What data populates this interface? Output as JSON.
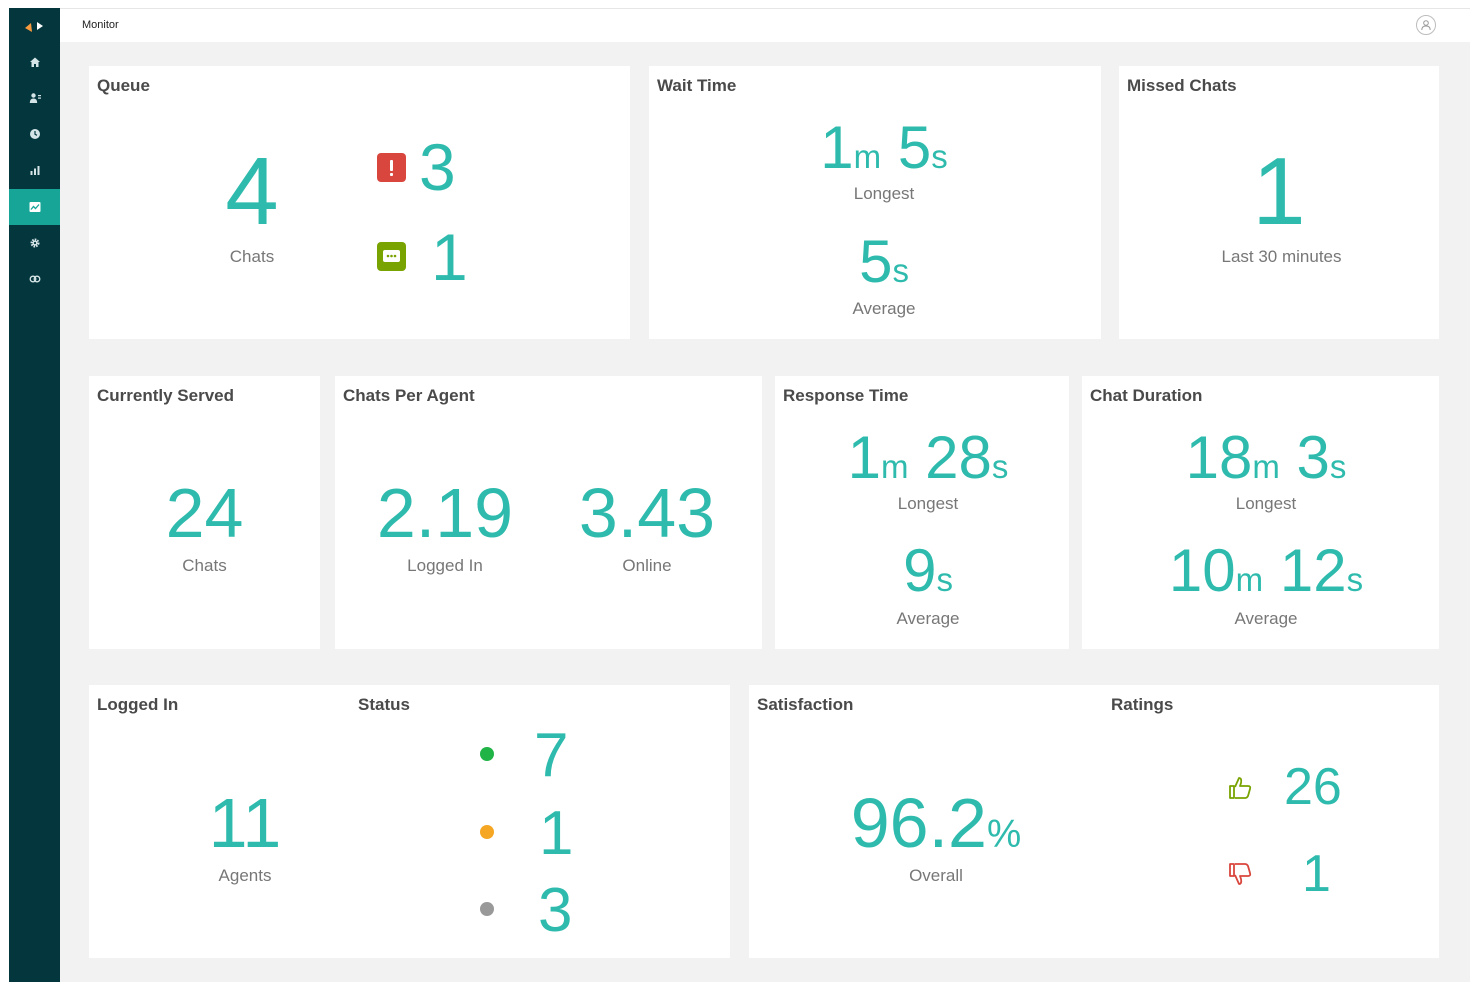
{
  "app": {
    "title": "Monitor"
  },
  "sidebar": {
    "items": [
      {
        "icon": "home-icon"
      },
      {
        "icon": "users-icon"
      },
      {
        "icon": "clock-icon"
      },
      {
        "icon": "bar-chart-icon"
      },
      {
        "icon": "monitor-chart-icon",
        "active": true
      },
      {
        "icon": "gear-icon"
      },
      {
        "icon": "link-icon"
      }
    ]
  },
  "colors": {
    "accent": "#2ebbad",
    "sidebar": "#03363d",
    "active_nav": "#17a597",
    "alert": "#d9463d",
    "chat_badge": "#78a300",
    "status_online": "#20b346",
    "status_away": "#f5a623",
    "status_offline": "#999999",
    "thumbs_up": "#78a300",
    "thumbs_down": "#d9463d"
  },
  "queue": {
    "title": "Queue",
    "chats_value": "4",
    "chats_label": "Chats",
    "alert_value": "3",
    "message_value": "1"
  },
  "wait_time": {
    "title": "Wait Time",
    "longest_m": "1",
    "longest_s": "5",
    "longest_label": "Longest",
    "average_s": "5",
    "average_label": "Average"
  },
  "missed_chats": {
    "title": "Missed Chats",
    "value": "1",
    "label": "Last 30 minutes"
  },
  "currently_served": {
    "title": "Currently Served",
    "value": "24",
    "label": "Chats"
  },
  "chats_per_agent": {
    "title": "Chats Per Agent",
    "logged_in_value": "2.19",
    "logged_in_label": "Logged In",
    "online_value": "3.43",
    "online_label": "Online"
  },
  "response_time": {
    "title": "Response Time",
    "longest_m": "1",
    "longest_s": "28",
    "longest_label": "Longest",
    "average_s": "9",
    "average_label": "Average"
  },
  "chat_duration": {
    "title": "Chat Duration",
    "longest_m": "18",
    "longest_s": "3",
    "longest_label": "Longest",
    "average_m": "10",
    "average_s": "12",
    "average_label": "Average"
  },
  "logged_in": {
    "title": "Logged In",
    "value": "11",
    "label": "Agents",
    "status_title": "Status",
    "online": "7",
    "away": "1",
    "offline": "3"
  },
  "satisfaction": {
    "title": "Satisfaction",
    "value": "96.2",
    "unit": "%",
    "label": "Overall",
    "ratings_title": "Ratings",
    "good": "26",
    "bad": "1"
  },
  "units": {
    "minutes": "m",
    "seconds": "s"
  }
}
